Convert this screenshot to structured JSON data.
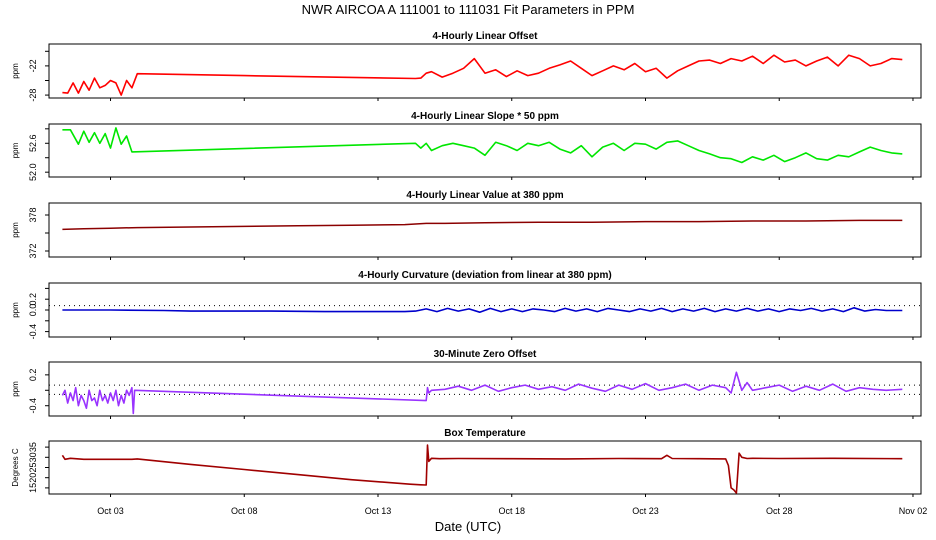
{
  "title": "NWR   AIRCOA A   111001 to 111031   Fit Parameters in PPM",
  "xlabel": "Date (UTC)",
  "x_ticks": [
    {
      "day": 3,
      "label": "Oct 03"
    },
    {
      "day": 8,
      "label": "Oct 08"
    },
    {
      "day": 13,
      "label": "Oct 13"
    },
    {
      "day": 18,
      "label": "Oct 18"
    },
    {
      "day": 23,
      "label": "Oct 23"
    },
    {
      "day": 28,
      "label": "Oct 28"
    },
    {
      "day": 33,
      "label": "Nov 02"
    }
  ],
  "xlim": [
    0.7,
    33.3
  ],
  "chart_data": [
    {
      "type": "line",
      "title": "4-Hourly Linear Offset",
      "ylabel": "ppm",
      "ylim": [
        -28.6,
        -17.5
      ],
      "y_ticks": [
        {
          "v": -28,
          "label": "-28"
        },
        {
          "v": -25,
          "label": ""
        },
        {
          "v": -22,
          "label": "-22"
        },
        {
          "v": -19,
          "label": ""
        }
      ],
      "color": "#ff0000",
      "series": [
        {
          "name": "offset",
          "x": [
            1.2,
            1.4,
            1.6,
            1.8,
            2.0,
            2.2,
            2.4,
            2.6,
            2.8,
            3.0,
            3.2,
            3.4,
            3.6,
            3.8,
            4,
            8,
            14.4,
            14.6,
            14.8,
            15.0,
            15.4,
            15.8,
            16.2,
            16.6,
            17.0,
            17.4,
            17.8,
            18.2,
            18.6,
            19.0,
            19.4,
            19.8,
            20.2,
            20.6,
            21.0,
            21.4,
            21.8,
            22.2,
            22.6,
            23.0,
            23.4,
            23.8,
            24.2,
            24.6,
            25.0,
            25.4,
            25.8,
            26.2,
            26.6,
            27.0,
            27.4,
            27.8,
            28.2,
            28.6,
            29.0,
            29.4,
            29.8,
            30.2,
            30.6,
            31.0,
            31.4,
            31.8,
            32.2,
            32.6
          ],
          "y": [
            -27.5,
            -27.6,
            -25.5,
            -27.6,
            -25.2,
            -27.0,
            -24.5,
            -26.5,
            -26.0,
            -25.0,
            -25.5,
            -28.0,
            -25.0,
            -26.5,
            -23.6,
            -24.0,
            -24.6,
            -24.5,
            -23.5,
            -23.2,
            -24.3,
            -23.5,
            -22.5,
            -20.5,
            -23.5,
            -22.8,
            -24.2,
            -23.0,
            -24.0,
            -23.5,
            -22.5,
            -21.8,
            -21.0,
            -22.5,
            -24.0,
            -23.0,
            -22.0,
            -22.8,
            -21.5,
            -23.2,
            -22.5,
            -24.5,
            -23.0,
            -22.0,
            -21.0,
            -20.8,
            -21.5,
            -20.5,
            -21.0,
            -20.0,
            -21.5,
            -19.8,
            -21.2,
            -20.8,
            -22.0,
            -21.0,
            -20.2,
            -22.0,
            -19.8,
            -20.5,
            -22.0,
            -21.5,
            -20.5,
            -20.7
          ]
        }
      ]
    },
    {
      "type": "line",
      "title": "4-Hourly Linear Slope * 50 ppm",
      "ylabel": "ppm",
      "ylim": [
        51.9,
        53.0
      ],
      "y_ticks": [
        {
          "v": 52.0,
          "label": "52.0"
        },
        {
          "v": 52.3,
          "label": ""
        },
        {
          "v": 52.6,
          "label": "52.6"
        },
        {
          "v": 52.9,
          "label": ""
        }
      ],
      "color": "#00e600",
      "series": [
        {
          "name": "slope",
          "x": [
            1.2,
            1.5,
            1.8,
            2.0,
            2.2,
            2.4,
            2.6,
            2.8,
            3.0,
            3.2,
            3.4,
            3.6,
            3.8,
            14.4,
            14.6,
            14.8,
            15.0,
            15.4,
            15.8,
            16.2,
            16.6,
            17.0,
            17.4,
            17.8,
            18.2,
            18.6,
            19.0,
            19.4,
            19.8,
            20.2,
            20.6,
            21.0,
            21.4,
            21.8,
            22.2,
            22.6,
            23.0,
            23.4,
            23.8,
            24.2,
            24.6,
            25.0,
            25.4,
            25.8,
            26.2,
            26.6,
            27.0,
            27.4,
            27.8,
            28.2,
            28.6,
            29.0,
            29.4,
            29.8,
            30.2,
            30.6,
            31.0,
            31.4,
            31.8,
            32.2,
            32.6
          ],
          "y": [
            52.88,
            52.88,
            52.58,
            52.85,
            52.62,
            52.82,
            52.6,
            52.8,
            52.5,
            52.92,
            52.58,
            52.75,
            52.42,
            52.6,
            52.5,
            52.6,
            52.45,
            52.55,
            52.6,
            52.55,
            52.5,
            52.35,
            52.62,
            52.55,
            52.45,
            52.6,
            52.55,
            52.62,
            52.48,
            52.4,
            52.55,
            52.32,
            52.52,
            52.6,
            52.45,
            52.6,
            52.58,
            52.48,
            52.62,
            52.65,
            52.55,
            52.45,
            52.38,
            52.3,
            52.28,
            52.2,
            52.32,
            52.25,
            52.35,
            52.22,
            52.3,
            52.4,
            52.28,
            52.25,
            52.35,
            52.32,
            52.42,
            52.52,
            52.45,
            52.4,
            52.38
          ]
        }
      ]
    },
    {
      "type": "line",
      "title": "4-Hourly Linear Value at 380 ppm",
      "ylabel": "ppm",
      "ylim": [
        371,
        380
      ],
      "y_ticks": [
        {
          "v": 372,
          "label": "372"
        },
        {
          "v": 375,
          "label": ""
        },
        {
          "v": 378,
          "label": "378"
        }
      ],
      "color": "#8b0000",
      "series": [
        {
          "name": "value",
          "x": [
            1.2,
            2,
            3,
            4,
            6,
            8,
            10,
            12,
            14,
            14.8,
            15.5,
            17,
            19,
            21,
            23,
            25,
            27,
            29,
            31,
            32.6
          ],
          "y": [
            375.6,
            375.7,
            375.8,
            375.9,
            376.0,
            376.1,
            376.2,
            376.3,
            376.4,
            376.6,
            376.6,
            376.7,
            376.8,
            376.8,
            376.9,
            376.9,
            377.0,
            377.0,
            377.1,
            377.1
          ]
        }
      ]
    },
    {
      "type": "line",
      "title": "4-Hourly Curvature (deviation from linear at 380 ppm)",
      "ylabel": "ppm",
      "ylim": [
        -0.5,
        0.5
      ],
      "y_ticks": [
        {
          "v": -0.4,
          "label": "-0.4"
        },
        {
          "v": -0.2,
          "label": ""
        },
        {
          "v": 0.0,
          "label": "0.0"
        },
        {
          "v": 0.2,
          "label": "0.2"
        },
        {
          "v": 0.4,
          "label": ""
        }
      ],
      "ref_line": 0.08,
      "color": "#0000cc",
      "series": [
        {
          "name": "curvature",
          "x": [
            1.2,
            3,
            5,
            6,
            8,
            9,
            11,
            12,
            14,
            14.4,
            14.8,
            15.2,
            15.6,
            16.0,
            16.4,
            16.8,
            17.2,
            17.6,
            18.0,
            18.4,
            18.8,
            19.2,
            19.6,
            20.0,
            20.4,
            20.8,
            21.2,
            21.6,
            22.0,
            22.4,
            22.8,
            23.2,
            23.6,
            24.0,
            24.4,
            24.8,
            25.2,
            25.6,
            26.0,
            26.4,
            26.8,
            27.2,
            27.6,
            28.0,
            28.4,
            28.8,
            29.2,
            29.6,
            30.0,
            30.4,
            30.8,
            31.2,
            31.6,
            32.0,
            32.6
          ],
          "y": [
            0.0,
            0.0,
            -0.01,
            -0.02,
            -0.02,
            -0.02,
            -0.03,
            -0.03,
            -0.03,
            -0.02,
            0.02,
            -0.03,
            0.03,
            -0.02,
            0.02,
            -0.04,
            0.03,
            -0.03,
            0.02,
            -0.03,
            0.02,
            0.0,
            -0.03,
            0.03,
            -0.02,
            0.02,
            -0.03,
            0.03,
            0.0,
            -0.03,
            0.02,
            -0.02,
            0.03,
            -0.03,
            0.02,
            -0.02,
            0.03,
            -0.03,
            0.02,
            -0.02,
            0.03,
            -0.02,
            0.02,
            -0.03,
            0.02,
            -0.01,
            0.03,
            -0.02,
            0.02,
            -0.03,
            0.04,
            -0.02,
            0.01,
            -0.01,
            -0.01
          ]
        }
      ]
    },
    {
      "type": "line",
      "title": "30-Minute Zero Offset",
      "ylabel": "ppm",
      "ylim": [
        -0.6,
        0.45
      ],
      "y_ticks": [
        {
          "v": -0.4,
          "label": "-0.4"
        },
        {
          "v": -0.1,
          "label": ""
        },
        {
          "v": 0.2,
          "label": "0.2"
        }
      ],
      "ref_lines": [
        -0.18,
        0.0
      ],
      "color": "#9933ff",
      "series": [
        {
          "name": "zero",
          "x": [
            1.2,
            1.3,
            1.4,
            1.5,
            1.6,
            1.7,
            1.8,
            1.9,
            2.0,
            2.1,
            2.2,
            2.3,
            2.4,
            2.5,
            2.6,
            2.7,
            2.8,
            2.9,
            3.0,
            3.1,
            3.2,
            3.3,
            3.4,
            3.5,
            3.6,
            3.7,
            3.8,
            3.85,
            3.9,
            14.8,
            14.85,
            14.9,
            15.0,
            15.5,
            16,
            16.5,
            17,
            17.5,
            18,
            18.5,
            19,
            19.5,
            20,
            20.5,
            21,
            21.5,
            22,
            22.5,
            23,
            23.5,
            24,
            24.5,
            25,
            25.5,
            26,
            26.2,
            26.4,
            26.6,
            26.8,
            27,
            27.5,
            28,
            28.5,
            29,
            29.5,
            30,
            30.5,
            31,
            31.5,
            32,
            32.6
          ],
          "y": [
            -0.2,
            -0.1,
            -0.35,
            -0.15,
            -0.3,
            -0.05,
            -0.4,
            -0.2,
            -0.3,
            -0.45,
            -0.1,
            -0.3,
            -0.25,
            -0.4,
            -0.1,
            -0.3,
            -0.2,
            -0.35,
            -0.15,
            -0.3,
            -0.1,
            -0.4,
            -0.2,
            -0.35,
            -0.1,
            -0.2,
            -0.05,
            -0.55,
            -0.1,
            -0.3,
            -0.05,
            -0.15,
            -0.1,
            -0.08,
            -0.02,
            -0.1,
            0.0,
            -0.12,
            -0.05,
            0.0,
            -0.08,
            -0.03,
            -0.1,
            0.02,
            -0.06,
            -0.12,
            0.0,
            -0.08,
            0.03,
            -0.1,
            -0.05,
            0.02,
            -0.1,
            0.0,
            -0.05,
            -0.15,
            0.25,
            -0.1,
            0.05,
            -0.1,
            -0.05,
            0.0,
            -0.12,
            -0.02,
            -0.1,
            0.02,
            -0.12,
            -0.05,
            -0.08,
            -0.1,
            -0.08
          ]
        }
      ]
    },
    {
      "type": "line",
      "title": "Box Temperature",
      "ylabel": "Degrees C",
      "ylim": [
        12,
        38
      ],
      "y_ticks": [
        {
          "v": 15,
          "label": "15"
        },
        {
          "v": 20,
          "label": "20"
        },
        {
          "v": 25,
          "label": "25"
        },
        {
          "v": 30,
          "label": "30"
        },
        {
          "v": 35,
          "label": "35"
        }
      ],
      "color": "#a00000",
      "series": [
        {
          "name": "temperature",
          "x": [
            1.2,
            1.3,
            1.5,
            2,
            3,
            3.8,
            4,
            6,
            8,
            10,
            12,
            14.2,
            14.6,
            14.8,
            14.85,
            14.9,
            15.0,
            15.3,
            16,
            18,
            20,
            22,
            23.6,
            23.8,
            24,
            25,
            26,
            26.1,
            26.2,
            26.3,
            26.4,
            26.5,
            26.6,
            26.8,
            27,
            28,
            30,
            32.6
          ],
          "y": [
            31,
            29,
            29.5,
            29,
            29,
            29,
            29.2,
            26.5,
            24,
            21.5,
            19,
            16.8,
            16.5,
            16.4,
            36.0,
            28.0,
            29.5,
            29.3,
            29.4,
            29.3,
            29.2,
            29.4,
            29.3,
            31,
            29.4,
            29.3,
            29.2,
            26,
            15,
            14,
            12.5,
            32,
            30,
            29.4,
            29.5,
            29.4,
            29.5,
            29.3
          ]
        }
      ]
    }
  ]
}
